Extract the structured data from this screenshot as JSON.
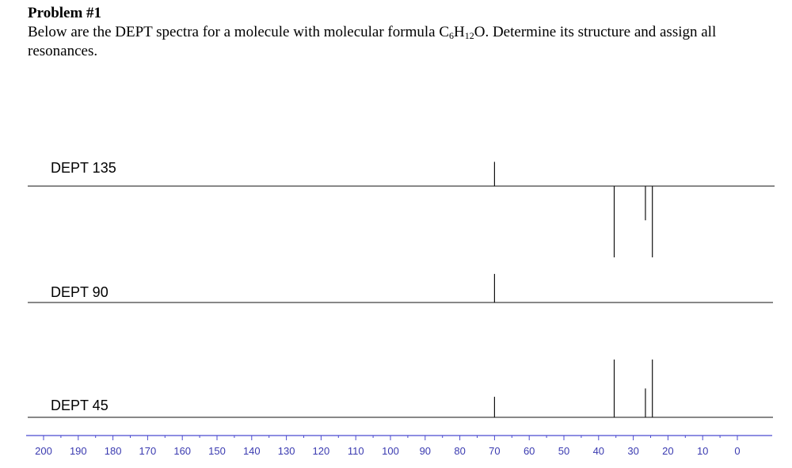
{
  "problem": {
    "title": "Problem #1",
    "text_before": "Below are the DEPT spectra for a molecule with molecular formula C",
    "formula_c_count": "6",
    "formula_h": "H",
    "formula_h_count": "12",
    "text_after": "O.  Determine its structure and assign all resonances."
  },
  "chart_data": {
    "type": "line",
    "xlabel": "",
    "ylabel": "",
    "x_axis": {
      "min": 0,
      "max": 200,
      "reversed": true,
      "major_step": 10,
      "minor_step": 5,
      "tick_labels": [
        "200",
        "190",
        "180",
        "170",
        "160",
        "150",
        "140",
        "130",
        "120",
        "110",
        "100",
        "90",
        "80",
        "70",
        "60",
        "50",
        "40",
        "30",
        "20",
        "10",
        "0"
      ],
      "color": "#4a4ad0"
    },
    "spectra": [
      {
        "label": "DEPT 135",
        "peaks": [
          {
            "ppm": 70,
            "intensity": 0.34
          },
          {
            "ppm": 35.5,
            "intensity": -1.0
          },
          {
            "ppm": 26.5,
            "intensity": -0.48
          },
          {
            "ppm": 24.5,
            "intensity": -1.0
          }
        ]
      },
      {
        "label": "DEPT 90",
        "peaks": [
          {
            "ppm": 70,
            "intensity": 0.38
          }
        ]
      },
      {
        "label": "DEPT 45",
        "peaks": [
          {
            "ppm": 70,
            "intensity": 0.27
          },
          {
            "ppm": 35.5,
            "intensity": 0.76
          },
          {
            "ppm": 26.5,
            "intensity": 0.38
          },
          {
            "ppm": 24.5,
            "intensity": 0.76
          }
        ]
      }
    ]
  }
}
